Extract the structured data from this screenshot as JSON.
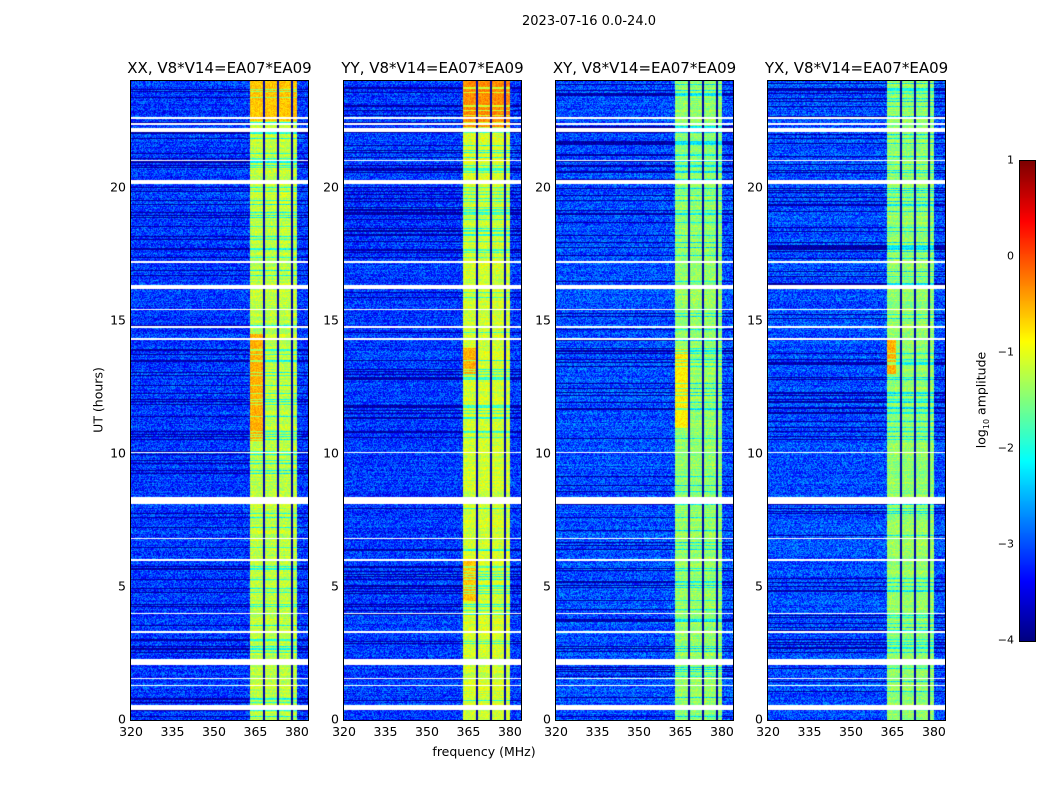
{
  "figure": {
    "suptitle": "2023-07-16 0.0-24.0"
  },
  "chart_data": {
    "type": "heatmap",
    "xlabel": "frequency (MHz)",
    "ylabel": "UT (hours)",
    "xlim": [
      320,
      384
    ],
    "ylim": [
      0,
      24
    ],
    "xticks": [
      "320",
      "335",
      "350",
      "365",
      "380"
    ],
    "yticks": [
      "0",
      "5",
      "10",
      "15",
      "20"
    ],
    "colorbar": {
      "label_prefix": "log",
      "label_sub": "10",
      "label_suffix": " amplitude",
      "range": [
        -4,
        1
      ],
      "ticks": [
        "1",
        "0",
        "−1",
        "−2",
        "−3",
        "−4"
      ],
      "colormap": "jet"
    },
    "panels": [
      {
        "title": "XX, V8*V14=EA07*EA09",
        "background_level": -3.1,
        "band_level": -1.2,
        "hot_regions": [
          {
            "t": [
              10.5,
              14.5
            ],
            "f": [
              363,
              368
            ],
            "level": -0.5
          },
          {
            "t": [
              22.5,
              24
            ],
            "f": [
              363,
              380
            ],
            "level": -0.6
          }
        ]
      },
      {
        "title": "YY, V8*V14=EA07*EA09",
        "background_level": -3.1,
        "band_level": -1.1,
        "hot_regions": [
          {
            "t": [
              22.3,
              24
            ],
            "f": [
              363,
              380
            ],
            "level": -0.3
          },
          {
            "t": [
              4.5,
              6
            ],
            "f": [
              363,
              368
            ],
            "level": -0.6
          },
          {
            "t": [
              13,
              14
            ],
            "f": [
              363,
              368
            ],
            "level": -0.5
          }
        ]
      },
      {
        "title": "XY, V8*V14=EA07*EA09",
        "background_level": -3.0,
        "band_level": -1.4,
        "hot_regions": [
          {
            "t": [
              11,
              14
            ],
            "f": [
              363,
              368
            ],
            "level": -0.8
          }
        ]
      },
      {
        "title": "YX, V8*V14=EA07*EA09",
        "background_level": -3.0,
        "band_level": -1.4,
        "hot_regions": [
          {
            "t": [
              13,
              14.3
            ],
            "f": [
              363,
              366
            ],
            "level": -0.5
          }
        ]
      }
    ],
    "band_range_mhz": [
      363,
      380
    ],
    "band_dividers_mhz": [
      368,
      373,
      378
    ],
    "flagged_intervals_hours": [
      [
        0.4,
        0.6
      ],
      [
        1.3,
        1.35
      ],
      [
        1.55,
        1.6
      ],
      [
        2.1,
        2.3
      ],
      [
        3.3,
        3.35
      ],
      [
        4.0,
        4.05
      ],
      [
        6.0,
        6.05
      ],
      [
        6.8,
        6.85
      ],
      [
        8.15,
        8.4
      ],
      [
        10.05,
        10.1
      ],
      [
        14.3,
        14.35
      ],
      [
        14.75,
        14.8
      ],
      [
        15.4,
        15.45
      ],
      [
        16.2,
        16.35
      ],
      [
        17.2,
        17.25
      ],
      [
        20.15,
        20.3
      ],
      [
        21.0,
        21.05
      ],
      [
        22.1,
        22.25
      ],
      [
        22.35,
        22.45
      ],
      [
        22.6,
        22.65
      ]
    ],
    "dark_zones_hours": [
      [
        2.5,
        4.2
      ],
      [
        4.8,
        5.8
      ],
      [
        10.5,
        14
      ],
      [
        17.3,
        20
      ],
      [
        20.5,
        23.8
      ]
    ]
  }
}
